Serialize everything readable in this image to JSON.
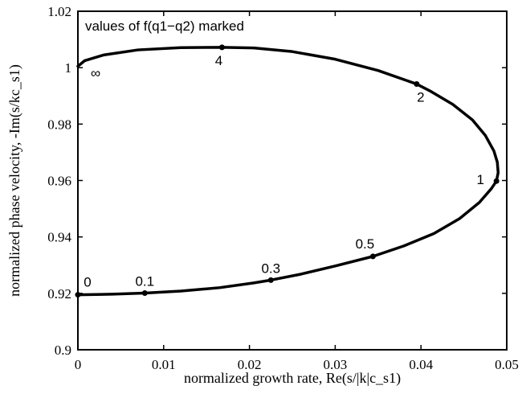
{
  "chart_data": {
    "type": "line",
    "title": "",
    "xlabel": "normalized growth rate, Re(s/|k|c_s1)",
    "ylabel": "normalized phase velocity, -Im(s/kc_s1)",
    "xlim": [
      0,
      0.05
    ],
    "ylim": [
      0.9,
      1.02
    ],
    "x_ticks": [
      "0",
      "0.01",
      "0.02",
      "0.03",
      "0.04",
      "0.05"
    ],
    "y_ticks": [
      "0.9",
      "0.92",
      "0.94",
      "0.96",
      "0.98",
      "1",
      "1.02"
    ],
    "grid": false,
    "annotation": "values of f(q1−q2) marked",
    "curve": {
      "x": [
        0,
        0.004,
        0.0078,
        0.012,
        0.0165,
        0.0205,
        0.0225,
        0.026,
        0.03,
        0.0344,
        0.038,
        0.0415,
        0.0445,
        0.0468,
        0.0482,
        0.0488,
        0.049,
        0.0489,
        0.0485,
        0.0475,
        0.046,
        0.0437,
        0.0412,
        0.0395,
        0.035,
        0.03,
        0.025,
        0.0205,
        0.0168,
        0.012,
        0.007,
        0.003,
        0.0008,
        0
      ],
      "y": [
        0.9195,
        0.9197,
        0.9201,
        0.9208,
        0.922,
        0.9237,
        0.9247,
        0.9268,
        0.9297,
        0.9331,
        0.9368,
        0.9412,
        0.9465,
        0.9522,
        0.9571,
        0.9598,
        0.9628,
        0.9665,
        0.9705,
        0.976,
        0.9815,
        0.987,
        0.9915,
        0.9942,
        0.999,
        1.003,
        1.0057,
        1.007,
        1.0072,
        1.0071,
        1.0063,
        1.0045,
        1.0025,
        1.0005
      ]
    },
    "markers": [
      {
        "label": "0",
        "x": 0,
        "y": 0.9195
      },
      {
        "label": "0.1",
        "x": 0.0078,
        "y": 0.9201
      },
      {
        "label": "0.3",
        "x": 0.0225,
        "y": 0.9247
      },
      {
        "label": "0.5",
        "x": 0.0344,
        "y": 0.9331
      },
      {
        "label": "1",
        "x": 0.0488,
        "y": 0.9598
      },
      {
        "label": "2",
        "x": 0.0395,
        "y": 0.9942
      },
      {
        "label": "4",
        "x": 0.0168,
        "y": 1.0072
      },
      {
        "label": "∞",
        "x": 0,
        "y": 1.0005,
        "no_dot": true
      }
    ]
  }
}
